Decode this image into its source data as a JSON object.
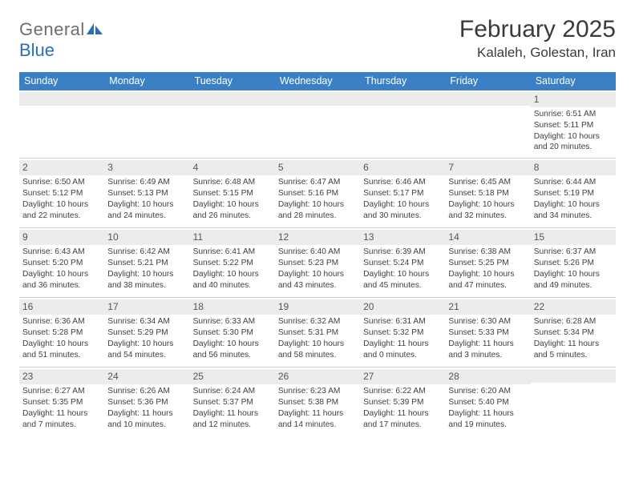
{
  "logo": {
    "word1": "General",
    "word2": "Blue"
  },
  "header": {
    "title": "February 2025",
    "location": "Kalaleh, Golestan, Iran"
  },
  "colors": {
    "header_bg": "#3b80c4",
    "header_text": "#ffffff",
    "band_bg": "#ececec",
    "text": "#404040",
    "logo_gray": "#6e6e6e",
    "logo_blue": "#2a6db8",
    "divider": "#d0d0d0"
  },
  "typography": {
    "title_fontsize": 30,
    "location_fontsize": 17,
    "dayheader_fontsize": 12.5,
    "cell_fontsize": 10.2,
    "daynum_fontsize": 12
  },
  "dayHeaders": [
    "Sunday",
    "Monday",
    "Tuesday",
    "Wednesday",
    "Thursday",
    "Friday",
    "Saturday"
  ],
  "weeks": [
    [
      {
        "num": "",
        "lines": []
      },
      {
        "num": "",
        "lines": []
      },
      {
        "num": "",
        "lines": []
      },
      {
        "num": "",
        "lines": []
      },
      {
        "num": "",
        "lines": []
      },
      {
        "num": "",
        "lines": []
      },
      {
        "num": "1",
        "lines": [
          "Sunrise: 6:51 AM",
          "Sunset: 5:11 PM",
          "Daylight: 10 hours and 20 minutes."
        ]
      }
    ],
    [
      {
        "num": "2",
        "lines": [
          "Sunrise: 6:50 AM",
          "Sunset: 5:12 PM",
          "Daylight: 10 hours and 22 minutes."
        ]
      },
      {
        "num": "3",
        "lines": [
          "Sunrise: 6:49 AM",
          "Sunset: 5:13 PM",
          "Daylight: 10 hours and 24 minutes."
        ]
      },
      {
        "num": "4",
        "lines": [
          "Sunrise: 6:48 AM",
          "Sunset: 5:15 PM",
          "Daylight: 10 hours and 26 minutes."
        ]
      },
      {
        "num": "5",
        "lines": [
          "Sunrise: 6:47 AM",
          "Sunset: 5:16 PM",
          "Daylight: 10 hours and 28 minutes."
        ]
      },
      {
        "num": "6",
        "lines": [
          "Sunrise: 6:46 AM",
          "Sunset: 5:17 PM",
          "Daylight: 10 hours and 30 minutes."
        ]
      },
      {
        "num": "7",
        "lines": [
          "Sunrise: 6:45 AM",
          "Sunset: 5:18 PM",
          "Daylight: 10 hours and 32 minutes."
        ]
      },
      {
        "num": "8",
        "lines": [
          "Sunrise: 6:44 AM",
          "Sunset: 5:19 PM",
          "Daylight: 10 hours and 34 minutes."
        ]
      }
    ],
    [
      {
        "num": "9",
        "lines": [
          "Sunrise: 6:43 AM",
          "Sunset: 5:20 PM",
          "Daylight: 10 hours and 36 minutes."
        ]
      },
      {
        "num": "10",
        "lines": [
          "Sunrise: 6:42 AM",
          "Sunset: 5:21 PM",
          "Daylight: 10 hours and 38 minutes."
        ]
      },
      {
        "num": "11",
        "lines": [
          "Sunrise: 6:41 AM",
          "Sunset: 5:22 PM",
          "Daylight: 10 hours and 40 minutes."
        ]
      },
      {
        "num": "12",
        "lines": [
          "Sunrise: 6:40 AM",
          "Sunset: 5:23 PM",
          "Daylight: 10 hours and 43 minutes."
        ]
      },
      {
        "num": "13",
        "lines": [
          "Sunrise: 6:39 AM",
          "Sunset: 5:24 PM",
          "Daylight: 10 hours and 45 minutes."
        ]
      },
      {
        "num": "14",
        "lines": [
          "Sunrise: 6:38 AM",
          "Sunset: 5:25 PM",
          "Daylight: 10 hours and 47 minutes."
        ]
      },
      {
        "num": "15",
        "lines": [
          "Sunrise: 6:37 AM",
          "Sunset: 5:26 PM",
          "Daylight: 10 hours and 49 minutes."
        ]
      }
    ],
    [
      {
        "num": "16",
        "lines": [
          "Sunrise: 6:36 AM",
          "Sunset: 5:28 PM",
          "Daylight: 10 hours and 51 minutes."
        ]
      },
      {
        "num": "17",
        "lines": [
          "Sunrise: 6:34 AM",
          "Sunset: 5:29 PM",
          "Daylight: 10 hours and 54 minutes."
        ]
      },
      {
        "num": "18",
        "lines": [
          "Sunrise: 6:33 AM",
          "Sunset: 5:30 PM",
          "Daylight: 10 hours and 56 minutes."
        ]
      },
      {
        "num": "19",
        "lines": [
          "Sunrise: 6:32 AM",
          "Sunset: 5:31 PM",
          "Daylight: 10 hours and 58 minutes."
        ]
      },
      {
        "num": "20",
        "lines": [
          "Sunrise: 6:31 AM",
          "Sunset: 5:32 PM",
          "Daylight: 11 hours and 0 minutes."
        ]
      },
      {
        "num": "21",
        "lines": [
          "Sunrise: 6:30 AM",
          "Sunset: 5:33 PM",
          "Daylight: 11 hours and 3 minutes."
        ]
      },
      {
        "num": "22",
        "lines": [
          "Sunrise: 6:28 AM",
          "Sunset: 5:34 PM",
          "Daylight: 11 hours and 5 minutes."
        ]
      }
    ],
    [
      {
        "num": "23",
        "lines": [
          "Sunrise: 6:27 AM",
          "Sunset: 5:35 PM",
          "Daylight: 11 hours and 7 minutes."
        ]
      },
      {
        "num": "24",
        "lines": [
          "Sunrise: 6:26 AM",
          "Sunset: 5:36 PM",
          "Daylight: 11 hours and 10 minutes."
        ]
      },
      {
        "num": "25",
        "lines": [
          "Sunrise: 6:24 AM",
          "Sunset: 5:37 PM",
          "Daylight: 11 hours and 12 minutes."
        ]
      },
      {
        "num": "26",
        "lines": [
          "Sunrise: 6:23 AM",
          "Sunset: 5:38 PM",
          "Daylight: 11 hours and 14 minutes."
        ]
      },
      {
        "num": "27",
        "lines": [
          "Sunrise: 6:22 AM",
          "Sunset: 5:39 PM",
          "Daylight: 11 hours and 17 minutes."
        ]
      },
      {
        "num": "28",
        "lines": [
          "Sunrise: 6:20 AM",
          "Sunset: 5:40 PM",
          "Daylight: 11 hours and 19 minutes."
        ]
      },
      {
        "num": "",
        "lines": []
      }
    ]
  ]
}
